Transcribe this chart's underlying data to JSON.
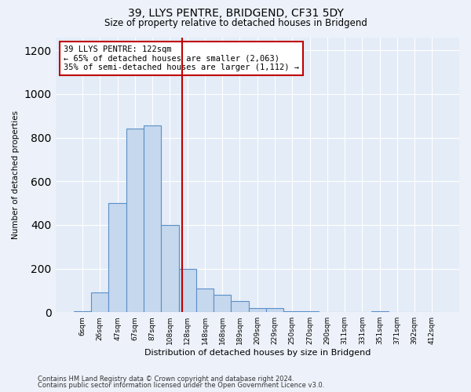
{
  "title1": "39, LLYS PENTRE, BRIDGEND, CF31 5DY",
  "title2": "Size of property relative to detached houses in Bridgend",
  "xlabel": "Distribution of detached houses by size in Bridgend",
  "ylabel": "Number of detached properties",
  "categories": [
    "6sqm",
    "26sqm",
    "47sqm",
    "67sqm",
    "87sqm",
    "108sqm",
    "128sqm",
    "148sqm",
    "168sqm",
    "189sqm",
    "209sqm",
    "229sqm",
    "250sqm",
    "270sqm",
    "290sqm",
    "311sqm",
    "331sqm",
    "351sqm",
    "371sqm",
    "392sqm",
    "412sqm"
  ],
  "values": [
    5,
    90,
    500,
    840,
    855,
    400,
    200,
    110,
    80,
    50,
    20,
    20,
    5,
    5,
    0,
    0,
    0,
    5,
    0,
    0,
    0
  ],
  "bar_color": "#c5d8ed",
  "bar_edge_color": "#5b8fc7",
  "vline_color": "#c00000",
  "vline_pos": 5.7,
  "annotation_text": "39 LLYS PENTRE: 122sqm\n← 65% of detached houses are smaller (2,063)\n35% of semi-detached houses are larger (1,112) →",
  "annotation_box_color": "#ffffff",
  "annotation_box_edge": "#c00000",
  "ylim": [
    0,
    1260
  ],
  "yticks": [
    0,
    200,
    400,
    600,
    800,
    1000,
    1200
  ],
  "footer1": "Contains HM Land Registry data © Crown copyright and database right 2024.",
  "footer2": "Contains public sector information licensed under the Open Government Licence v3.0.",
  "bg_color": "#edf2fa",
  "plot_bg_color": "#e4ecf7"
}
